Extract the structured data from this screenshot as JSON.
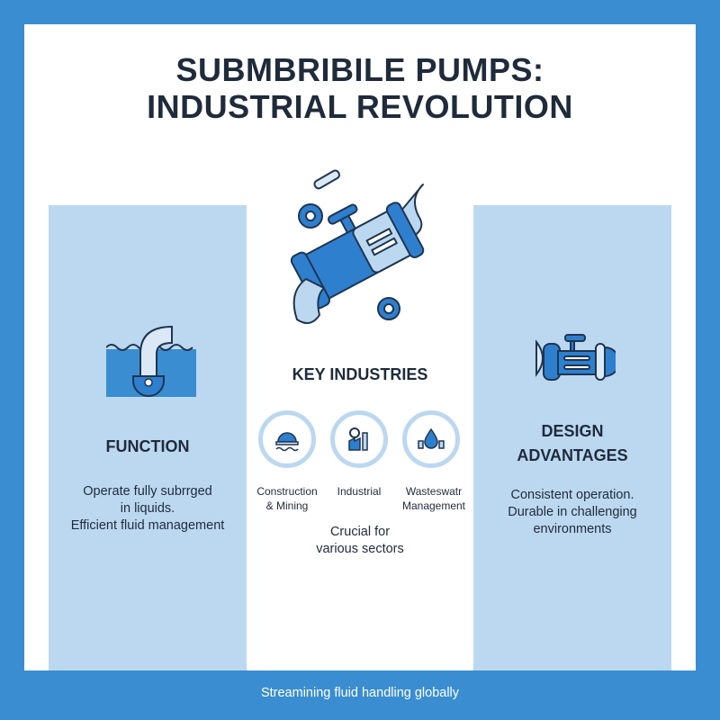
{
  "title": {
    "line1": "SUBMBRIBILE PUMPS:",
    "line2": "INDUSTRIAL REVOLUTION"
  },
  "colors": {
    "frame": "#3a8dd0",
    "panel": "#bcd8f0",
    "accent": "#2f7fcf",
    "text": "#1f2b3b"
  },
  "hero_icon": "submersible-pump-illustration",
  "function": {
    "icon": "submerged-pipe-icon",
    "heading": "FUNCTION",
    "lines": [
      "Operate fully subrrged",
      "in liquids.",
      "Efficient fluid management"
    ]
  },
  "industries": {
    "heading": "KEY INDUSTRIES",
    "items": [
      {
        "icon": "hard-hat-icon",
        "line1": "Construction",
        "line2": "& Mining"
      },
      {
        "icon": "factory-gear-icon",
        "line1": "Industrial",
        "line2": ""
      },
      {
        "icon": "water-drop-pipe-icon",
        "line1": "Wasteswatr",
        "line2": "Management"
      }
    ],
    "note": [
      "Crucial for",
      "various sectors"
    ]
  },
  "design": {
    "icon": "pump-motor-icon",
    "heading": [
      "DESIGN",
      "ADVANTAGES"
    ],
    "lines": [
      "Consistent operation.",
      "Durable in challenging",
      "environments"
    ]
  },
  "footer": "Streamining fluid handling globally"
}
